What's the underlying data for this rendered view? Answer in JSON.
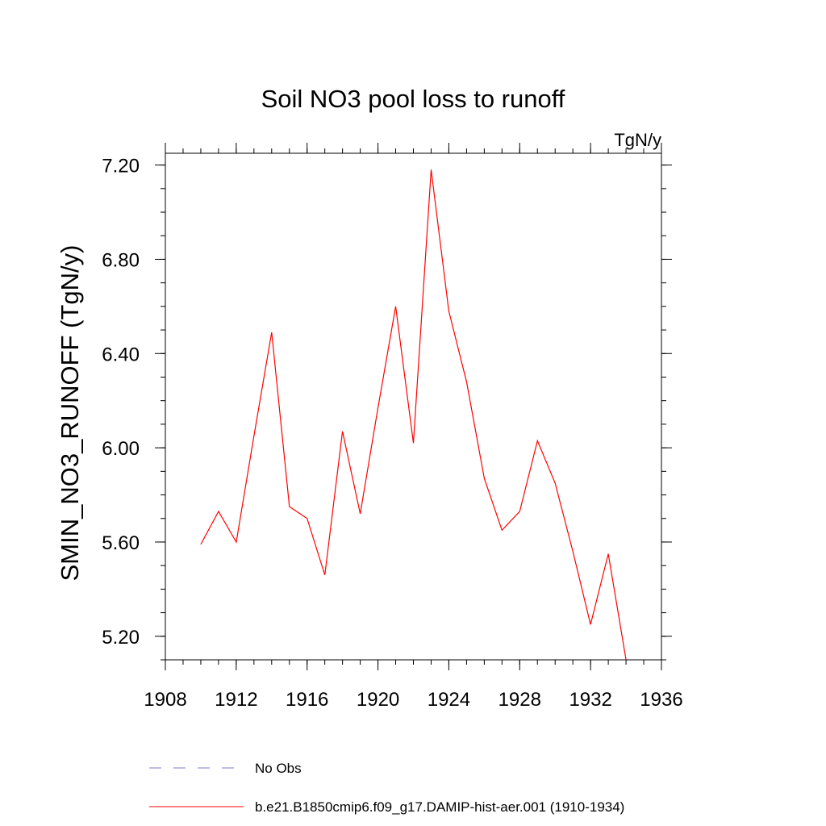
{
  "chart_data": {
    "type": "line",
    "title": "Soil NO3 pool loss to runoff",
    "units": "TgN/y",
    "ylabel": "SMIN_NO3_RUNOFF  (TgN/y)",
    "xlabel": "",
    "xlim": [
      1908,
      1936
    ],
    "ylim": [
      5.1,
      7.25
    ],
    "x_ticks": [
      1908,
      1912,
      1916,
      1920,
      1924,
      1928,
      1932,
      1936
    ],
    "x_minor_step": 1,
    "y_ticks": [
      "5.20",
      "5.60",
      "6.00",
      "6.40",
      "6.80",
      "7.20"
    ],
    "y_minor_step": 0.1,
    "grid": false,
    "legend_position": "bottom",
    "series": [
      {
        "name": "No Obs",
        "color": "#7b7bd6",
        "style": "dashed",
        "x": [],
        "y": []
      },
      {
        "name": "b.e21.B1850cmip6.f09_g17.DAMIP-hist-aer.001 (1910-1934)",
        "color": "#ff0000",
        "style": "solid",
        "x": [
          1910,
          1911,
          1912,
          1913,
          1914,
          1915,
          1916,
          1917,
          1918,
          1919,
          1920,
          1921,
          1922,
          1923,
          1924,
          1925,
          1926,
          1927,
          1928,
          1929,
          1930,
          1931,
          1932,
          1933,
          1934
        ],
        "y": [
          5.59,
          5.73,
          5.6,
          6.05,
          6.49,
          5.75,
          5.7,
          5.46,
          6.07,
          5.72,
          6.17,
          6.6,
          6.02,
          7.18,
          6.58,
          6.28,
          5.87,
          5.65,
          5.73,
          6.03,
          5.85,
          5.56,
          5.25,
          5.55,
          5.1
        ]
      }
    ]
  }
}
